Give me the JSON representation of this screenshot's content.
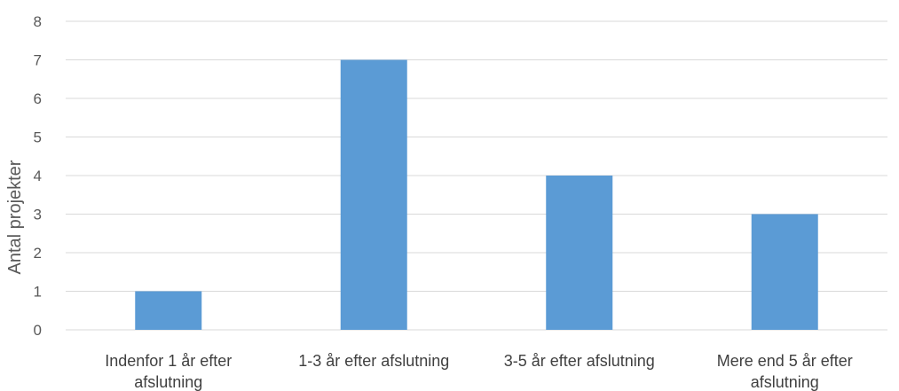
{
  "chart_data": {
    "type": "bar",
    "categories": [
      [
        "Indenfor 1 år efter",
        "afslutning"
      ],
      [
        "1-3 år efter afslutning"
      ],
      [
        "3-5 år efter afslutning"
      ],
      [
        "Mere end 5 år efter",
        "afslutning"
      ]
    ],
    "values": [
      1,
      7,
      4,
      3
    ],
    "title": "",
    "xlabel": "",
    "ylabel": "Antal projekter",
    "ylim": [
      0,
      8
    ],
    "yticks": [
      0,
      1,
      2,
      3,
      4,
      5,
      6,
      7,
      8
    ],
    "grid": true,
    "legend": "none",
    "colors": {
      "bar": "#5b9bd5",
      "grid": "#d9d9d9",
      "text": "#595959"
    }
  }
}
